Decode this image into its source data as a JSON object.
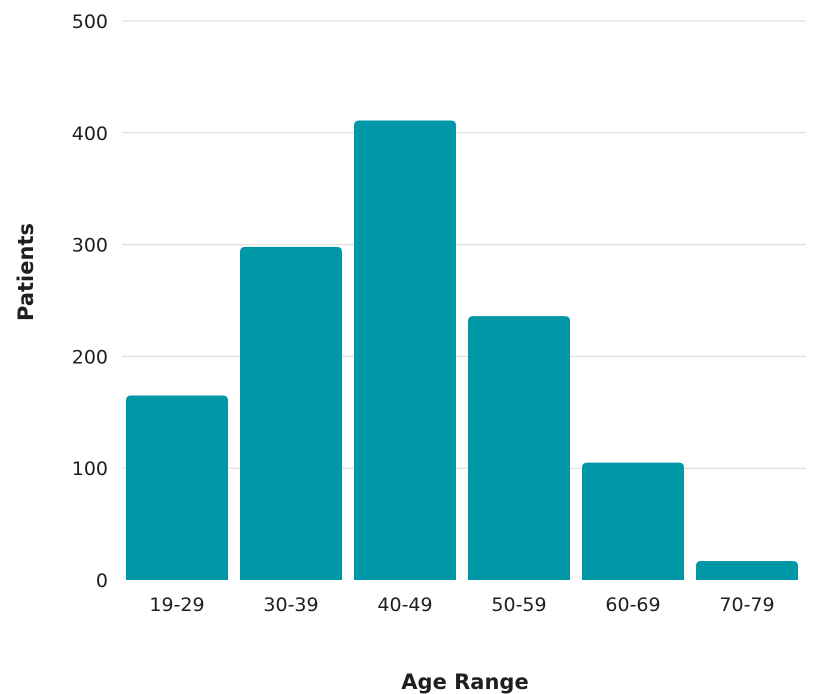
{
  "chart_data": {
    "type": "bar",
    "title": "",
    "xlabel": "Age Range",
    "ylabel": "Patients",
    "categories": [
      "19-29",
      "30-39",
      "40-49",
      "50-59",
      "60-69",
      "70-79"
    ],
    "values": [
      165,
      298,
      411,
      236,
      105,
      17
    ],
    "ylim": [
      0,
      500
    ],
    "yticks": [
      "0",
      "100",
      "200",
      "300",
      "400",
      "500"
    ],
    "grid": true,
    "legend": "none",
    "bar_color": "#0097A7"
  }
}
